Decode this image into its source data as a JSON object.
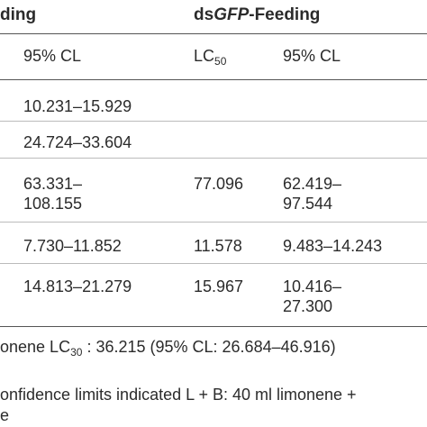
{
  "header": {
    "group1": "ding",
    "group2_prefix": "ds",
    "group2_gene": "GFP",
    "group2_suffix": "-Feeding"
  },
  "subheader": {
    "ci1": "95% CL",
    "lc_base": "LC",
    "lc_sub": "50",
    "ci2": "95% CL"
  },
  "rows": [
    {
      "ci1_a": "10.231–15.929",
      "ci1_b": "",
      "lc50": "",
      "ci2_a": "",
      "ci2_b": ""
    },
    {
      "ci1_a": "24.724–33.604",
      "ci1_b": "",
      "lc50": "",
      "ci2_a": "",
      "ci2_b": ""
    },
    {
      "ci1_a": "63.331–",
      "ci1_b": "108.155",
      "lc50": "77.096",
      "ci2_a": "62.419–",
      "ci2_b": "97.544"
    },
    {
      "ci1_a": "7.730–11.852",
      "ci1_b": "",
      "lc50": "11.578",
      "ci2_a": "9.483–14.243",
      "ci2_b": ""
    },
    {
      "ci1_a": "14.813–21.279",
      "ci1_b": "",
      "lc50": "15.967",
      "ci2_a": "10.416–",
      "ci2_b": "27.300"
    }
  ],
  "footer": {
    "line1_prefix": "onene LC",
    "line1_sub": "30",
    "line1_suffix": " : 36.215 (95% CL: 26.684–46.916)",
    "line2": "onfidence limits indicated L + B: 40 ml limonene +",
    "line3": "e"
  }
}
